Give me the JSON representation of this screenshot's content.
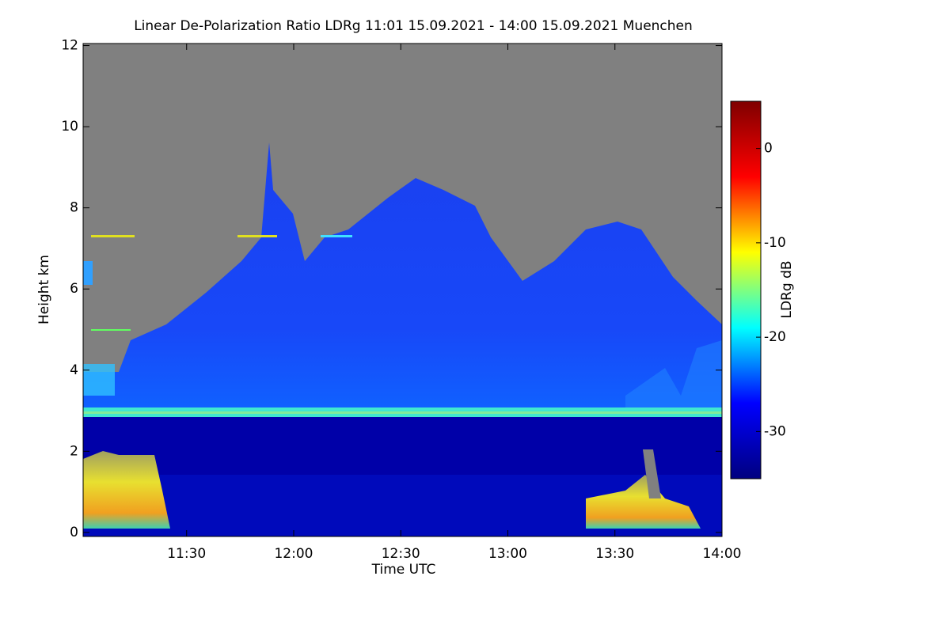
{
  "chart_data": {
    "type": "heatmap",
    "title": "Linear De-Polarization Ratio LDRg   11:01 15.09.2021 - 14:00 15.09.2021 Muenchen",
    "xlabel": "Time UTC",
    "ylabel": "Height km",
    "xlim": [
      "11:01",
      "14:00"
    ],
    "xticks": [
      "11:30",
      "12:00",
      "12:30",
      "13:00",
      "13:30",
      "14:00"
    ],
    "ylim": [
      -0.1,
      12.05
    ],
    "yticks": [
      0,
      2,
      4,
      6,
      8,
      10,
      12
    ],
    "colorbar": {
      "label": "LDRg dB",
      "clim": [
        -35,
        5
      ],
      "ticks": [
        0,
        -10,
        -20,
        -30
      ],
      "colors": [
        "#00007f",
        "#0000ff",
        "#00ffff",
        "#ffff00",
        "#ff0000",
        "#7f0000"
      ]
    }
  }
}
